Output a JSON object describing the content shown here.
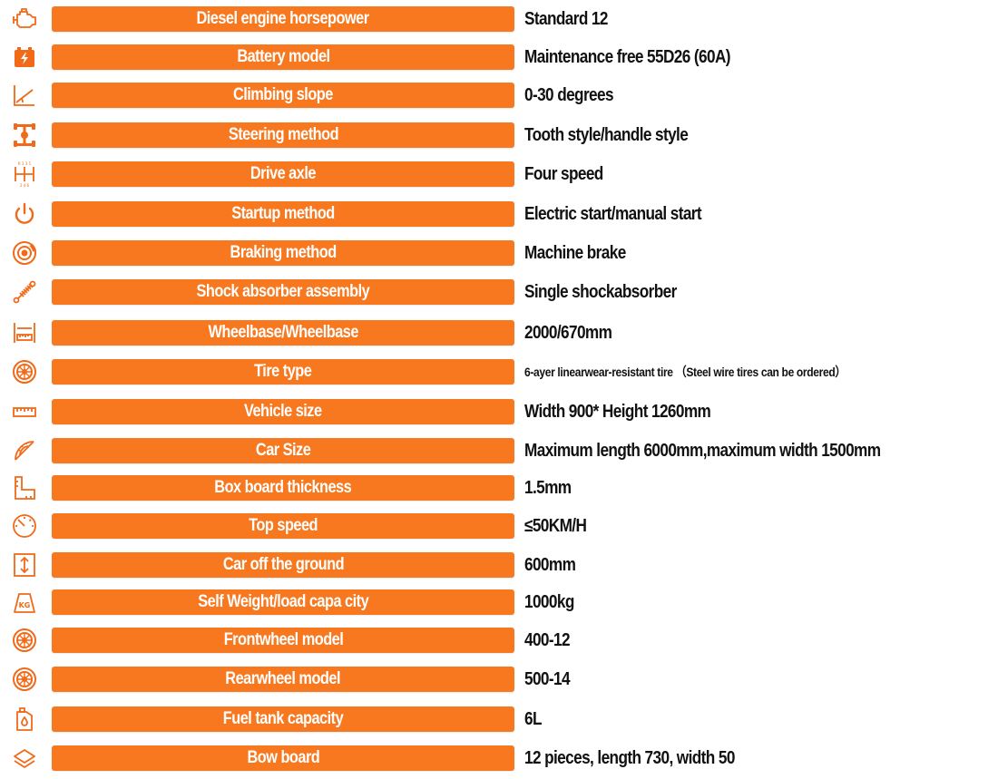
{
  "specs": [
    {
      "label": "Diesel engine horsepower",
      "value": "Standard 12",
      "icon": "engine-icon"
    },
    {
      "label": "Battery model",
      "value": "Maintenance free 55D26 (60A)",
      "icon": "battery-icon"
    },
    {
      "label": "Climbing slope",
      "value": "0-30 degrees",
      "icon": "slope-icon"
    },
    {
      "label": "Steering method",
      "value": "Tooth style/handle style",
      "icon": "steering-icon"
    },
    {
      "label": "Drive axle",
      "value": "Four speed",
      "icon": "gearshift-icon"
    },
    {
      "label": "Startup method",
      "value": "Electric start/manual start",
      "icon": "power-icon"
    },
    {
      "label": "Braking method",
      "value": "Machine brake",
      "icon": "brake-disc-icon"
    },
    {
      "label": "Shock absorber assembly",
      "value": "Single shockabsorber",
      "icon": "shock-absorber-icon"
    },
    {
      "label": "Wheelbase/Wheelbase",
      "value": "2000/670mm",
      "icon": "wheelbase-icon"
    },
    {
      "label": "Tire type",
      "value": "6-ayer linearwear-resistant tire  （Steel wire tires can be ordered）",
      "icon": "tire-icon"
    },
    {
      "label": "Vehicle size",
      "value": "Width 900* Height 1260mm",
      "icon": "ruler-icon"
    },
    {
      "label": "Car Size",
      "value": "Maximum length 6000mm,maximum width 1500mm",
      "icon": "protractor-icon"
    },
    {
      "label": "Box board thickness",
      "value": "1.5mm",
      "icon": "thickness-icon"
    },
    {
      "label": "Top speed",
      "value": "≤50KM/H",
      "icon": "speedometer-icon"
    },
    {
      "label": "Car off the ground",
      "value": "600mm",
      "icon": "ground-clearance-icon"
    },
    {
      "label": "Self  Weight/load capa city",
      "value": "1000kg",
      "icon": "weight-kg-icon"
    },
    {
      "label": "Frontwheel model",
      "value": "400-12",
      "icon": "front-wheel-icon"
    },
    {
      "label": "Rearwheel model",
      "value": "500-14",
      "icon": "rear-wheel-icon"
    },
    {
      "label": "Fuel tank capacity",
      "value": "6L",
      "icon": "fuel-tank-icon"
    },
    {
      "label": "Bow board",
      "value": "12 pieces, length 730, width 50",
      "icon": "layers-icon"
    }
  ],
  "icons": {
    "kg_text": "KG",
    "gear_top": "R 1 3 5",
    "gear_bottom": "2 4 6"
  },
  "colors": {
    "accent": "#f7781f",
    "icon_stroke": "#f06a1a",
    "value_text": "#111111",
    "label_text": "#ffffff"
  }
}
